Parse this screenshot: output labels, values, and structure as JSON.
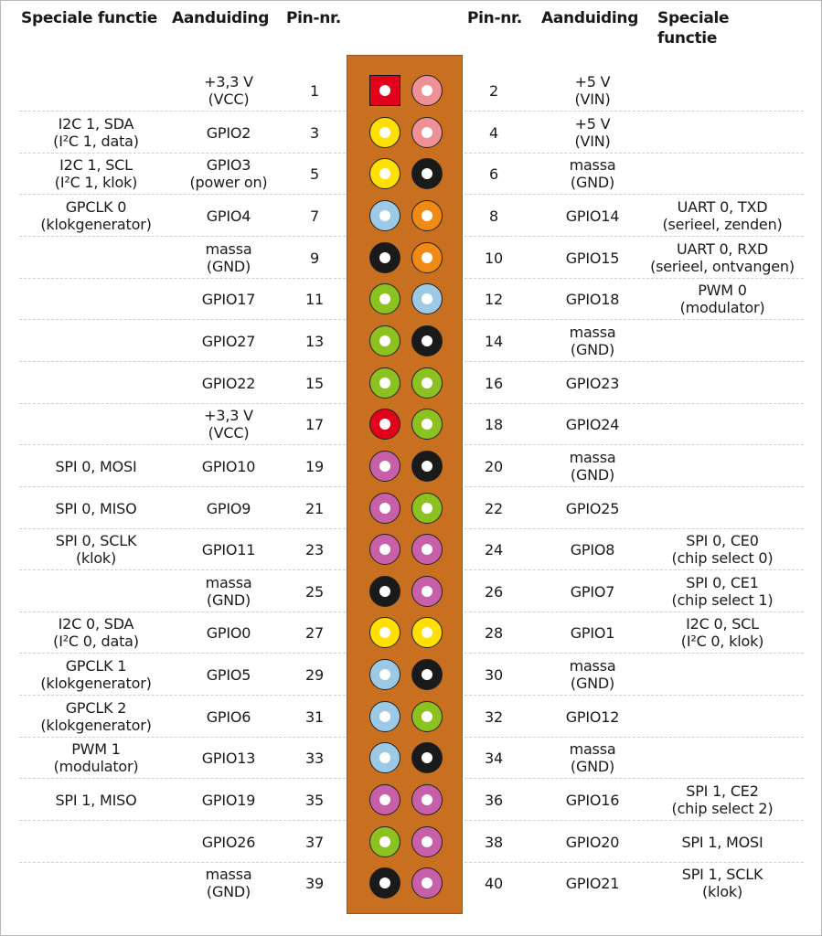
{
  "headers": {
    "special_left": "Speciale functie",
    "name_left": "Aanduiding",
    "pin_left": "Pin-nr.",
    "pin_right": "Pin-nr.",
    "name_right": "Aanduiding",
    "special_right": "Speciale\nfunctie"
  },
  "colors": {
    "red": "#e2001a",
    "pink": "#ef8f96",
    "yellow": "#ffe000",
    "black": "#1a1a1a",
    "lightblue": "#9cc9e6",
    "orange": "#f08a12",
    "green": "#8bc21f",
    "purple": "#c760a8",
    "board": "#c8701f"
  },
  "rows": [
    {
      "left": {
        "pin": "1",
        "name": "+3,3 V\n(VCC)",
        "special": "",
        "color": "red",
        "square": true
      },
      "right": {
        "pin": "2",
        "name": "+5 V\n(VIN)",
        "special": "",
        "color": "pink"
      }
    },
    {
      "left": {
        "pin": "3",
        "name": "GPIO2",
        "special": "I2C 1, SDA\n(I²C 1, data)",
        "color": "yellow"
      },
      "right": {
        "pin": "4",
        "name": "+5 V\n(VIN)",
        "special": "",
        "color": "pink"
      }
    },
    {
      "left": {
        "pin": "5",
        "name": "GPIO3\n(power on)",
        "special": "I2C 1, SCL\n(I²C 1, klok)",
        "color": "yellow"
      },
      "right": {
        "pin": "6",
        "name": "massa\n(GND)",
        "special": "",
        "color": "black"
      }
    },
    {
      "left": {
        "pin": "7",
        "name": "GPIO4",
        "special": "GPCLK 0\n(klokgenerator)",
        "color": "lightblue"
      },
      "right": {
        "pin": "8",
        "name": "GPIO14",
        "special": "UART 0, TXD\n(serieel, zenden)",
        "color": "orange"
      }
    },
    {
      "left": {
        "pin": "9",
        "name": "massa\n(GND)",
        "special": "",
        "color": "black"
      },
      "right": {
        "pin": "10",
        "name": "GPIO15",
        "special": "UART 0, RXD\n(serieel, ontvangen)",
        "color": "orange"
      }
    },
    {
      "left": {
        "pin": "11",
        "name": "GPIO17",
        "special": "",
        "color": "green"
      },
      "right": {
        "pin": "12",
        "name": "GPIO18",
        "special": "PWM 0\n(modulator)",
        "color": "lightblue"
      }
    },
    {
      "left": {
        "pin": "13",
        "name": "GPIO27",
        "special": "",
        "color": "green"
      },
      "right": {
        "pin": "14",
        "name": "massa\n(GND)",
        "special": "",
        "color": "black"
      }
    },
    {
      "left": {
        "pin": "15",
        "name": "GPIO22",
        "special": "",
        "color": "green"
      },
      "right": {
        "pin": "16",
        "name": "GPIO23",
        "special": "",
        "color": "green"
      }
    },
    {
      "left": {
        "pin": "17",
        "name": "+3,3 V\n(VCC)",
        "special": "",
        "color": "red"
      },
      "right": {
        "pin": "18",
        "name": "GPIO24",
        "special": "",
        "color": "green"
      }
    },
    {
      "left": {
        "pin": "19",
        "name": "GPIO10",
        "special": "SPI 0, MOSI",
        "color": "purple"
      },
      "right": {
        "pin": "20",
        "name": "massa\n(GND)",
        "special": "",
        "color": "black"
      }
    },
    {
      "left": {
        "pin": "21",
        "name": "GPIO9",
        "special": "SPI 0, MISO",
        "color": "purple"
      },
      "right": {
        "pin": "22",
        "name": "GPIO25",
        "special": "",
        "color": "green"
      }
    },
    {
      "left": {
        "pin": "23",
        "name": "GPIO11",
        "special": "SPI 0, SCLK\n(klok)",
        "color": "purple"
      },
      "right": {
        "pin": "24",
        "name": "GPIO8",
        "special": "SPI 0, CE0\n(chip select 0)",
        "color": "purple"
      }
    },
    {
      "left": {
        "pin": "25",
        "name": "massa\n(GND)",
        "special": "",
        "color": "black"
      },
      "right": {
        "pin": "26",
        "name": "GPIO7",
        "special": "SPI 0, CE1\n(chip select 1)",
        "color": "purple"
      }
    },
    {
      "left": {
        "pin": "27",
        "name": "GPIO0",
        "special": "I2C 0, SDA\n(I²C 0, data)",
        "color": "yellow"
      },
      "right": {
        "pin": "28",
        "name": "GPIO1",
        "special": "I2C 0, SCL\n(I²C 0, klok)",
        "color": "yellow"
      }
    },
    {
      "left": {
        "pin": "29",
        "name": "GPIO5",
        "special": "GPCLK 1\n(klokgenerator)",
        "color": "lightblue"
      },
      "right": {
        "pin": "30",
        "name": "massa\n(GND)",
        "special": "",
        "color": "black"
      }
    },
    {
      "left": {
        "pin": "31",
        "name": "GPIO6",
        "special": "GPCLK 2\n(klokgenerator)",
        "color": "lightblue"
      },
      "right": {
        "pin": "32",
        "name": "GPIO12",
        "special": "",
        "color": "green"
      }
    },
    {
      "left": {
        "pin": "33",
        "name": "GPIO13",
        "special": "PWM 1\n(modulator)",
        "color": "lightblue"
      },
      "right": {
        "pin": "34",
        "name": "massa\n(GND)",
        "special": "",
        "color": "black"
      }
    },
    {
      "left": {
        "pin": "35",
        "name": "GPIO19",
        "special": "SPI 1, MISO",
        "color": "purple"
      },
      "right": {
        "pin": "36",
        "name": "GPIO16",
        "special": "SPI 1, CE2\n(chip select 2)",
        "color": "purple"
      }
    },
    {
      "left": {
        "pin": "37",
        "name": "GPIO26",
        "special": "",
        "color": "green"
      },
      "right": {
        "pin": "38",
        "name": "GPIO20",
        "special": "SPI 1, MOSI",
        "color": "purple"
      }
    },
    {
      "left": {
        "pin": "39",
        "name": "massa\n(GND)",
        "special": "",
        "color": "black"
      },
      "right": {
        "pin": "40",
        "name": "GPIO21",
        "special": "SPI 1, SCLK\n(klok)",
        "color": "purple"
      }
    }
  ]
}
